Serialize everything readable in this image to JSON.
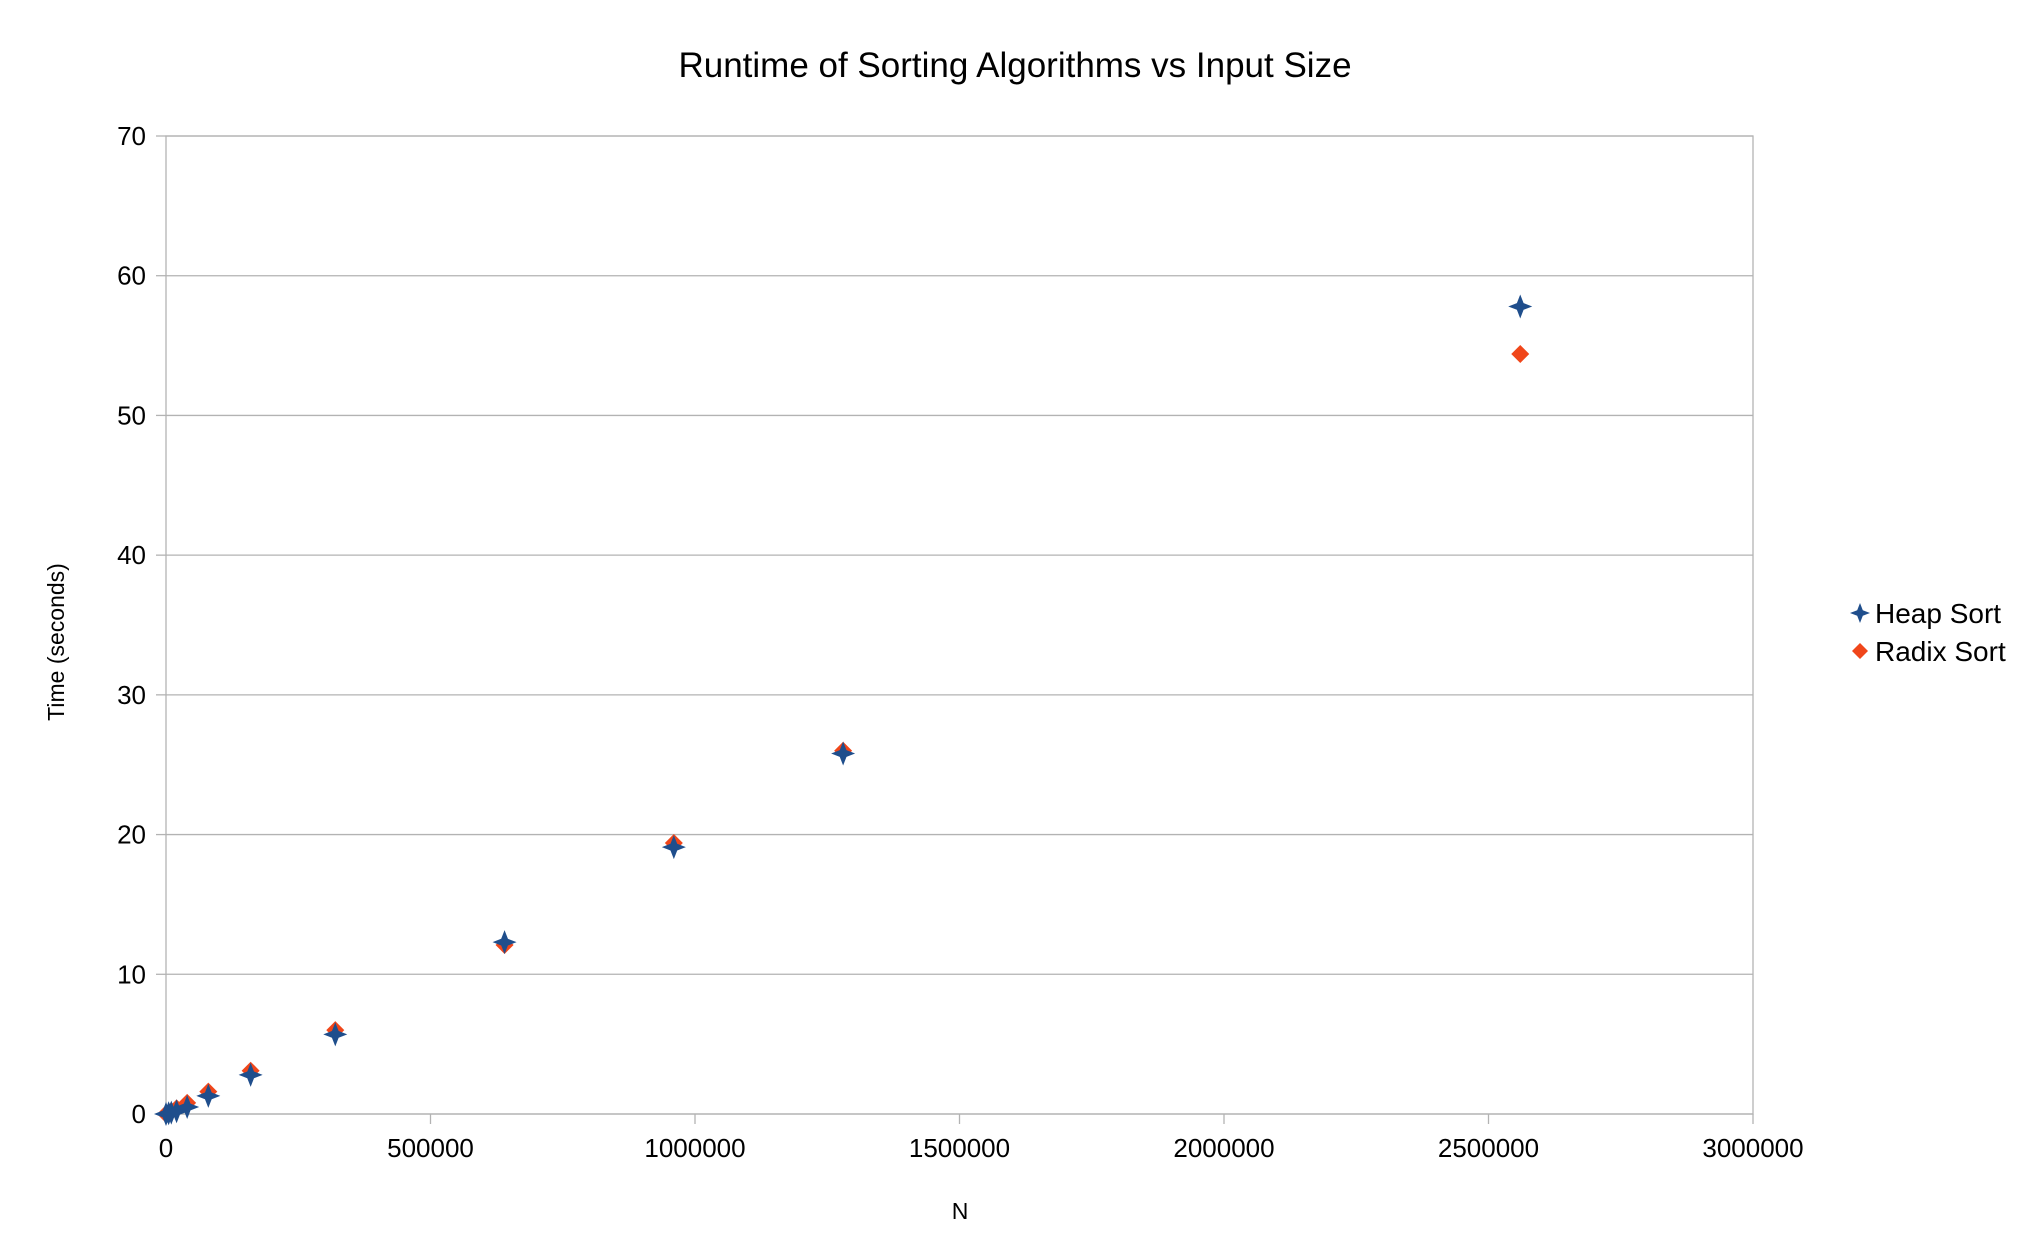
{
  "chart_data": {
    "type": "scatter",
    "title": "Runtime of Sorting Algorithms vs Input Size",
    "xlabel": "N",
    "ylabel": "Time (seconds)",
    "xlim": [
      0,
      3000000
    ],
    "ylim": [
      0,
      70
    ],
    "x_ticks": [
      "0",
      "500000",
      "1000000",
      "1500000",
      "2000000",
      "2500000",
      "3000000"
    ],
    "y_ticks": [
      "0",
      "10",
      "20",
      "30",
      "40",
      "50",
      "60",
      "70"
    ],
    "grid": "horizontal",
    "legend_position": "right",
    "series": [
      {
        "name": "Heap Sort",
        "color": "#1f4e8c",
        "marker": "four-point-star",
        "points": [
          {
            "x": 0,
            "y": 0
          },
          {
            "x": 5000,
            "y": 0.05
          },
          {
            "x": 10000,
            "y": 0.1
          },
          {
            "x": 20000,
            "y": 0.2
          },
          {
            "x": 40000,
            "y": 0.5
          },
          {
            "x": 80000,
            "y": 1.3
          },
          {
            "x": 160000,
            "y": 2.8
          },
          {
            "x": 320000,
            "y": 5.7
          },
          {
            "x": 640000,
            "y": 12.3
          },
          {
            "x": 960000,
            "y": 19.1
          },
          {
            "x": 1280000,
            "y": 25.8
          },
          {
            "x": 2560000,
            "y": 57.8
          }
        ]
      },
      {
        "name": "Radix Sort",
        "color": "#f0461a",
        "marker": "diamond",
        "points": [
          {
            "x": 0,
            "y": 0
          },
          {
            "x": 5000,
            "y": 0.1
          },
          {
            "x": 10000,
            "y": 0.2
          },
          {
            "x": 20000,
            "y": 0.4
          },
          {
            "x": 40000,
            "y": 0.8
          },
          {
            "x": 80000,
            "y": 1.6
          },
          {
            "x": 160000,
            "y": 3.1
          },
          {
            "x": 320000,
            "y": 6.0
          },
          {
            "x": 640000,
            "y": 12.1
          },
          {
            "x": 960000,
            "y": 19.4
          },
          {
            "x": 1280000,
            "y": 26.0
          },
          {
            "x": 2560000,
            "y": 54.4
          }
        ]
      }
    ]
  }
}
